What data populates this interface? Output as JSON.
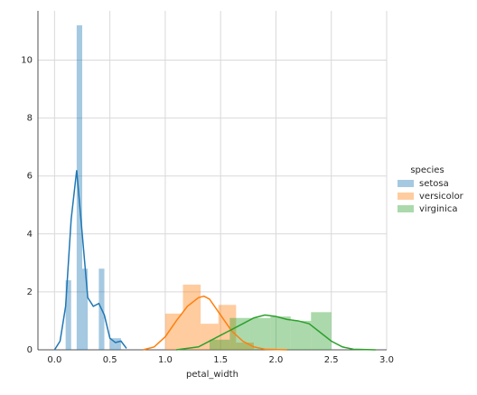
{
  "chart_data": {
    "type": "histogram",
    "xlabel": "petal_width",
    "legend_title": "species",
    "legend_position": "right",
    "grid": true,
    "xlim": [
      -0.15,
      3.0
    ],
    "ylim": [
      0,
      11.7
    ],
    "xticks": [
      {
        "value": 0,
        "label": "0.0"
      },
      {
        "value": 0.5,
        "label": "0.5"
      },
      {
        "value": 1,
        "label": "1.0"
      },
      {
        "value": 1.5,
        "label": "1.5"
      },
      {
        "value": 2,
        "label": "2.0"
      },
      {
        "value": 2.5,
        "label": "2.5"
      },
      {
        "value": 3,
        "label": "3.0"
      }
    ],
    "yticks": [
      0,
      2,
      4,
      6,
      8,
      10
    ],
    "series": [
      {
        "name": "setosa",
        "color": "#1f77b4",
        "bins": [
          0.1,
          0.15,
          0.2,
          0.25,
          0.3,
          0.35,
          0.4,
          0.45,
          0.5,
          0.55,
          0.6
        ],
        "values": [
          2.4,
          0,
          11.2,
          2.8,
          0,
          0,
          2.8,
          0,
          0.4,
          0.4
        ],
        "kde_x": [
          0.0,
          0.05,
          0.1,
          0.15,
          0.2,
          0.25,
          0.3,
          0.35,
          0.4,
          0.45,
          0.5,
          0.55,
          0.6,
          0.65
        ],
        "kde_y": [
          0,
          0.3,
          1.5,
          4.5,
          6.2,
          4.0,
          1.8,
          1.5,
          1.6,
          1.2,
          0.4,
          0.25,
          0.3,
          0.05
        ]
      },
      {
        "name": "versicolor",
        "color": "#ff7f0e",
        "bins": [
          1.0,
          1.16,
          1.32,
          1.48,
          1.64,
          1.8
        ],
        "values": [
          1.25,
          2.25,
          0.9,
          1.55,
          0.25
        ],
        "kde_x": [
          0.8,
          0.9,
          1.0,
          1.1,
          1.2,
          1.3,
          1.35,
          1.4,
          1.5,
          1.6,
          1.7,
          1.8,
          1.9,
          2.1
        ],
        "kde_y": [
          0,
          0.1,
          0.45,
          1.0,
          1.5,
          1.8,
          1.85,
          1.75,
          1.2,
          0.65,
          0.3,
          0.1,
          0.02,
          0
        ]
      },
      {
        "name": "virginica",
        "color": "#2ca02c",
        "bins": [
          1.4,
          1.583,
          1.767,
          1.95,
          2.133,
          2.317,
          2.5
        ],
        "values": [
          0.35,
          1.1,
          1.1,
          1.15,
          1.0,
          1.3
        ],
        "kde_x": [
          1.1,
          1.3,
          1.5,
          1.7,
          1.8,
          1.9,
          2.0,
          2.1,
          2.2,
          2.3,
          2.4,
          2.5,
          2.6,
          2.7,
          2.9
        ],
        "kde_y": [
          0,
          0.1,
          0.5,
          0.9,
          1.1,
          1.2,
          1.15,
          1.05,
          1.0,
          0.9,
          0.6,
          0.3,
          0.1,
          0.02,
          0
        ]
      }
    ]
  }
}
